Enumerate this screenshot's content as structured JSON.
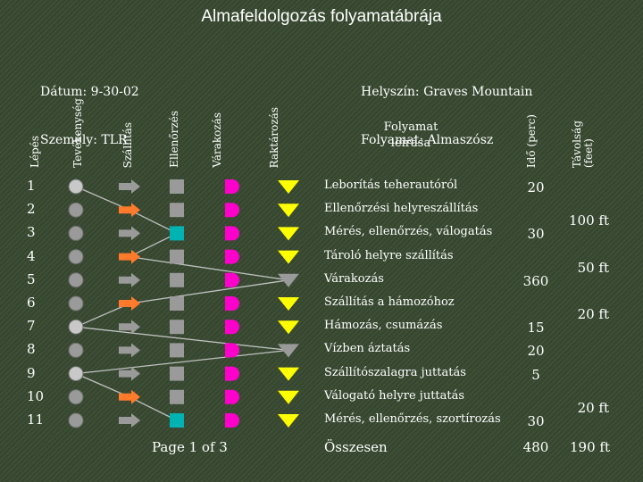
{
  "title": "Almafeldolgozás folyamatábrája",
  "info": {
    "date": "Dátum: 9-30-02",
    "person": "Személy: TLR",
    "location": "Helyszín: Graves Mountain",
    "process": "Folyamat: Almaszósz"
  },
  "headers": {
    "step": "Lépés",
    "operation": "Tevékenység",
    "transport": "Szállítás",
    "inspection": "Ellenőrzés",
    "delay": "Várakozás",
    "storage": "Raktározás",
    "description_line1": "Folyamat",
    "description_line2": "leírása",
    "time": "Idő (perc)",
    "distance_line1": "Távolság",
    "distance_line2": "(feet)"
  },
  "colors": {
    "operation": "#c8c8c8",
    "transport": "#ff7a2a",
    "inspection": "#00b3b3",
    "delay": "#ff00cc",
    "storage": "#ffff00",
    "inactive": "#9a9a9a",
    "line": "#c0c0c0"
  },
  "rows": [
    {
      "step": "1",
      "description": "Leborítás teherautóról",
      "time": "20",
      "distance": "",
      "active": "operation"
    },
    {
      "step": "2",
      "description": "Ellenőrzési helyreszállítás",
      "time": "",
      "distance": "100 ft",
      "active": "transport"
    },
    {
      "step": "3",
      "description": "Mérés, ellenőrzés, válogatás",
      "time": "30",
      "distance": "",
      "active": "inspection"
    },
    {
      "step": "4",
      "description": "Tároló helyre szállítás",
      "time": "",
      "distance": "50 ft",
      "active": "transport"
    },
    {
      "step": "5",
      "description": "Várakozás",
      "time": "360",
      "distance": "",
      "active": "storage"
    },
    {
      "step": "6",
      "description": "Szállítás a hámozóhoz",
      "time": "",
      "distance": "20 ft",
      "active": "transport"
    },
    {
      "step": "7",
      "description": "Hámozás, csumázás",
      "time": "15",
      "distance": "",
      "active": "operation"
    },
    {
      "step": "8",
      "description": "Vízben áztatás",
      "time": "20",
      "distance": "",
      "active": "storage"
    },
    {
      "step": "9",
      "description": "Szállítószalagra juttatás",
      "time": "5",
      "distance": "",
      "active": "operation"
    },
    {
      "step": "10",
      "description": "Válogató helyre juttatás",
      "time": "",
      "distance": "20 ft",
      "active": "transport"
    },
    {
      "step": "11",
      "description": "Mérés, ellenőrzés, szortírozás",
      "time": "30",
      "distance": "",
      "active": "inspection"
    }
  ],
  "footer": {
    "page": "Page 1 of 3",
    "total_label": "Összesen",
    "total_time": "480",
    "total_distance": "190 ft"
  }
}
